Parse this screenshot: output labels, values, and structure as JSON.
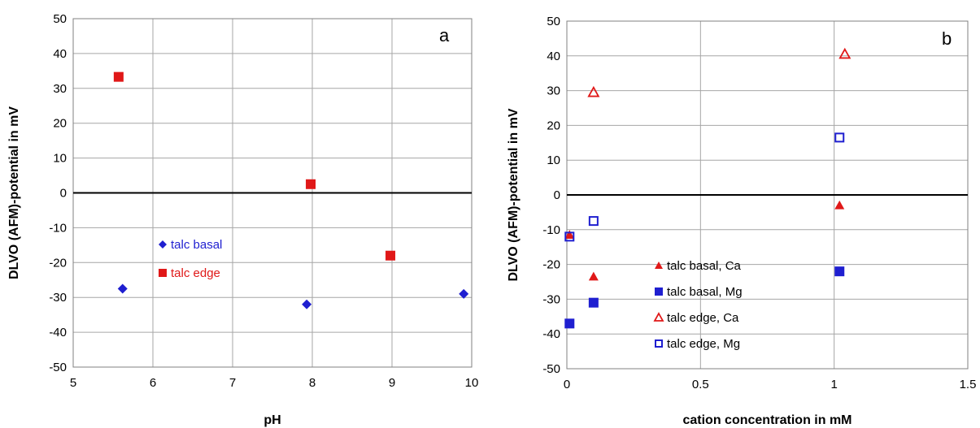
{
  "chart_data": [
    {
      "type": "scatter",
      "panel_label": "a",
      "xlabel": "pH",
      "ylabel": "DLVO (AFM)-potential in mV",
      "xlim": [
        5,
        10
      ],
      "ylim": [
        -50,
        50
      ],
      "xticks": [
        5,
        6,
        7,
        8,
        9,
        10
      ],
      "yticks": [
        -50,
        -40,
        -30,
        -20,
        -10,
        0,
        10,
        20,
        30,
        40,
        50
      ],
      "grid": true,
      "legend_position": "center-left",
      "series": [
        {
          "name": "talc basal",
          "marker": "diamond-filled",
          "color": "#1f1fd0",
          "points": [
            [
              5.62,
              -27.5
            ],
            [
              7.93,
              -32
            ],
            [
              9.9,
              -29
            ]
          ]
        },
        {
          "name": "talc edge",
          "marker": "square-filled",
          "color": "#e01818",
          "points": [
            [
              5.57,
              33.3
            ],
            [
              7.98,
              2.5
            ],
            [
              8.98,
              -18
            ]
          ]
        }
      ]
    },
    {
      "type": "scatter",
      "panel_label": "b",
      "xlabel": "cation concentration in mM",
      "ylabel": "DLVO (AFM)-potential in mV",
      "xlim": [
        0,
        1.5
      ],
      "ylim": [
        -50,
        50
      ],
      "xticks": [
        "0",
        "0.5",
        "1",
        "1.5"
      ],
      "yticks": [
        -50,
        -40,
        -30,
        -20,
        -10,
        0,
        10,
        20,
        30,
        40,
        50
      ],
      "grid": true,
      "legend_position": "bottom-center",
      "series": [
        {
          "name": "talc basal, Ca",
          "marker": "triangle-filled",
          "color": "#e01818",
          "points": [
            [
              0.01,
              -11.5
            ],
            [
              0.1,
              -23.5
            ],
            [
              1.02,
              -3
            ]
          ]
        },
        {
          "name": "talc basal, Mg",
          "marker": "square-filled",
          "color": "#1f1fd0",
          "points": [
            [
              0.01,
              -37
            ],
            [
              0.1,
              -31
            ],
            [
              1.02,
              -22
            ]
          ]
        },
        {
          "name": "talc edge, Ca",
          "marker": "triangle-open",
          "color": "#e01818",
          "points": [
            [
              0.1,
              29.5
            ],
            [
              1.04,
              40.5
            ]
          ]
        },
        {
          "name": "talc edge, Mg",
          "marker": "square-open",
          "color": "#1f1fd0",
          "points": [
            [
              0.01,
              -12
            ],
            [
              0.1,
              -7.5
            ],
            [
              1.02,
              16.5
            ]
          ]
        }
      ]
    }
  ]
}
